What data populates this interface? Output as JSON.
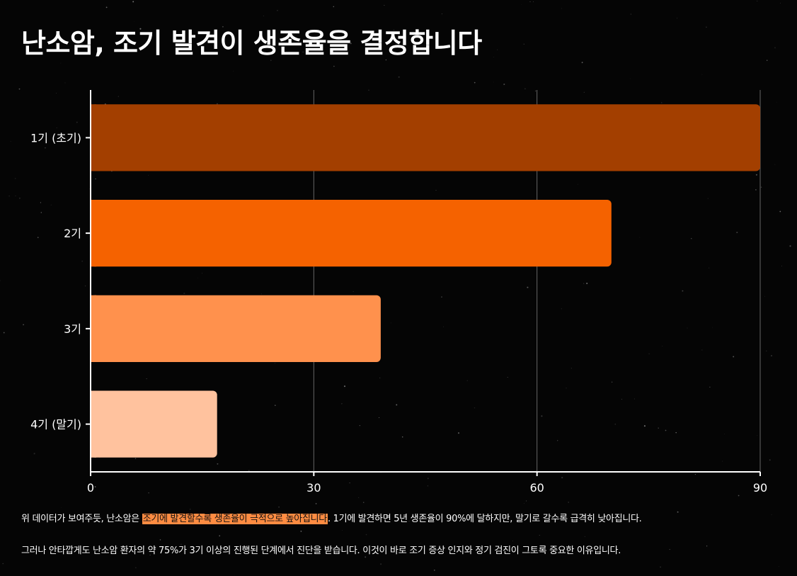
{
  "title": "난소암, 조기 발견이 생존율을 결정합니다",
  "chart_data": {
    "type": "bar",
    "orientation": "horizontal",
    "categories": [
      "1기 (초기)",
      "2기",
      "3기",
      "4기 (말기)"
    ],
    "values": [
      90,
      70,
      39,
      17
    ],
    "xlim": [
      0,
      90
    ],
    "xticks": [
      0,
      30,
      60,
      90
    ],
    "grid": true,
    "legend": "none",
    "colors": [
      "#a33f00",
      "#f56200",
      "#ff914d",
      "#ffc29e"
    ]
  },
  "text": {
    "para1_before": "위 데이터가 보여주듯, 난소암은 ",
    "para1_highlight": "조기에 발견할수록 생존율이 극적으로 높아집니다",
    "para1_after": ". 1기에 발견하면 5년 생존율이 90%에 달하지만, 말기로 갈수록 급격히 낮아집니다.",
    "para2": "그러나 안타깝게도 난소암 환자의 약 75%가 3기 이상의 진행된 단계에서 진단을 받습니다. 이것이 바로 조기 증상 인지와 정기 검진이 그토록 중요한 이유입니다."
  }
}
